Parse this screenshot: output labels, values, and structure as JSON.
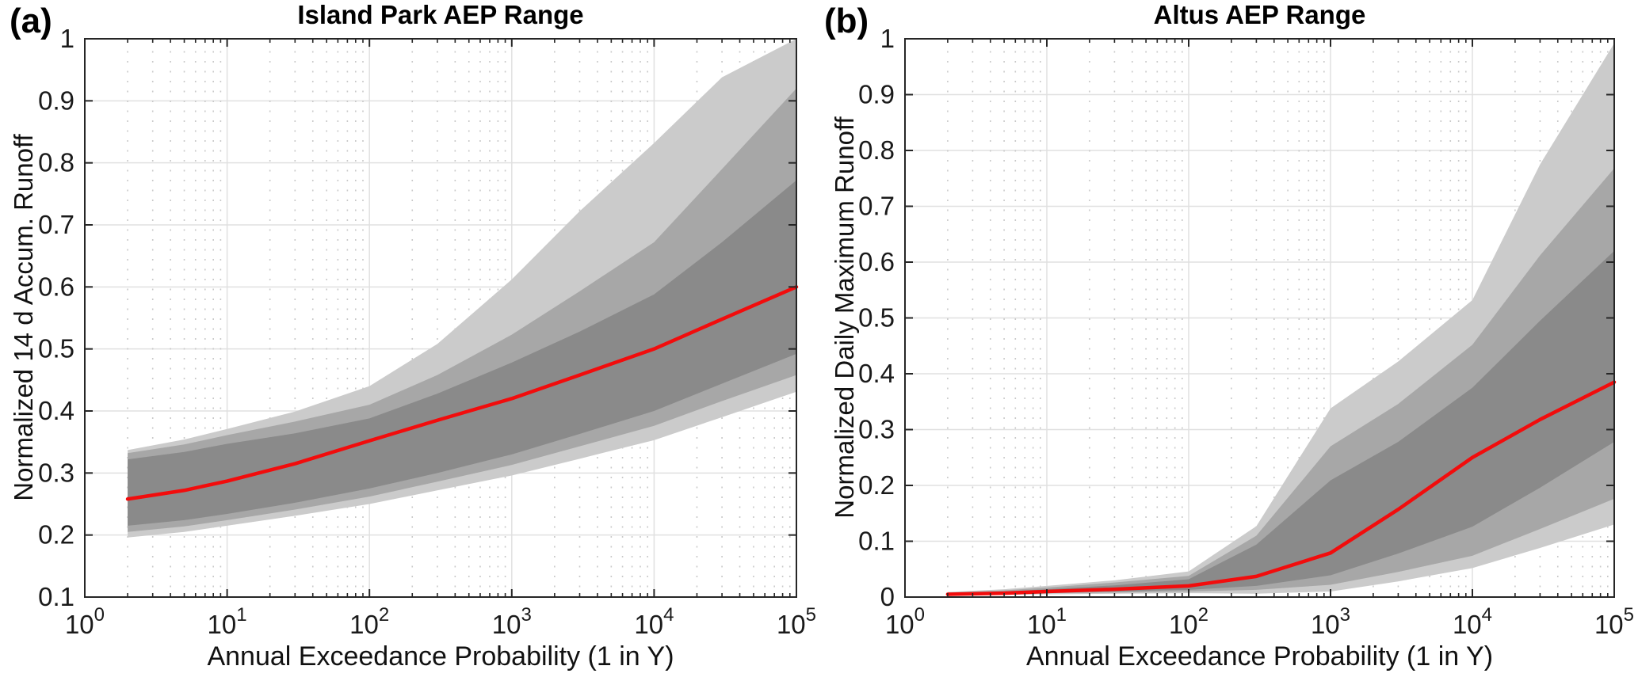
{
  "figure": {
    "panel_tags": [
      "(a)",
      "(b)"
    ],
    "colors": {
      "median": "#f20c0c",
      "band_inner": "#8a8a8a",
      "band_middle": "#a7a7a7",
      "band_outer": "#cbcbcb",
      "grid_major": "#e0e0e0",
      "grid_minor_dots": "#c9c9c9",
      "axis": "#262626",
      "tick_text": "#1a1a1a"
    }
  },
  "chart_data": [
    {
      "type": "area",
      "panel": "a",
      "title": "Island Park AEP Range",
      "xlabel": "Annual Exceedance Probability (1 in Y)",
      "ylabel": "Normalized 14 d Accum. Runoff",
      "x_scale": "log10",
      "xlim": [
        1,
        100000
      ],
      "ylim": [
        0.1,
        1
      ],
      "x_tick_exponents": [
        0,
        1,
        2,
        3,
        4,
        5
      ],
      "y_tick_labels": [
        "0.1",
        "0.2",
        "0.3",
        "0.4",
        "0.5",
        "0.6",
        "0.7",
        "0.8",
        "0.9",
        "1"
      ],
      "grid": "on",
      "legend": "none",
      "x": [
        2,
        5,
        10,
        30,
        100,
        300,
        1000,
        3000,
        10000,
        30000,
        100000
      ],
      "median": [
        0.258,
        0.272,
        0.287,
        0.315,
        0.352,
        0.385,
        0.42,
        0.458,
        0.5,
        0.548,
        0.6
      ],
      "bands": [
        {
          "name": "outer",
          "upper": [
            0.337,
            0.354,
            0.371,
            0.399,
            0.44,
            0.508,
            0.612,
            0.722,
            0.832,
            0.938,
            1.0
          ],
          "lower": [
            0.196,
            0.205,
            0.215,
            0.231,
            0.25,
            0.272,
            0.296,
            0.323,
            0.353,
            0.39,
            0.431
          ]
        },
        {
          "name": "middle",
          "upper": [
            0.332,
            0.346,
            0.361,
            0.383,
            0.41,
            0.458,
            0.523,
            0.593,
            0.672,
            0.79,
            0.92
          ],
          "lower": [
            0.205,
            0.214,
            0.224,
            0.241,
            0.262,
            0.286,
            0.313,
            0.343,
            0.376,
            0.416,
            0.458
          ]
        },
        {
          "name": "inner",
          "upper": [
            0.322,
            0.334,
            0.347,
            0.364,
            0.388,
            0.428,
            0.478,
            0.528,
            0.588,
            0.672,
            0.772
          ],
          "lower": [
            0.215,
            0.224,
            0.234,
            0.252,
            0.275,
            0.3,
            0.33,
            0.363,
            0.4,
            0.444,
            0.492
          ]
        }
      ]
    },
    {
      "type": "area",
      "panel": "b",
      "title": "Altus AEP Range",
      "xlabel": "Annual Exceedance Probability (1 in Y)",
      "ylabel": "Normalized Daily Maximum Runoff",
      "x_scale": "log10",
      "xlim": [
        1,
        100000
      ],
      "ylim": [
        0,
        1
      ],
      "x_tick_exponents": [
        0,
        1,
        2,
        3,
        4,
        5
      ],
      "y_tick_labels": [
        "0",
        "0.1",
        "0.2",
        "0.3",
        "0.4",
        "0.5",
        "0.6",
        "0.7",
        "0.8",
        "0.9",
        "1"
      ],
      "grid": "on",
      "legend": "none",
      "x": [
        2,
        5,
        10,
        30,
        100,
        300,
        1000,
        3000,
        10000,
        30000,
        100000
      ],
      "median": [
        0.005,
        0.007,
        0.01,
        0.014,
        0.02,
        0.037,
        0.079,
        0.157,
        0.25,
        0.318,
        0.385
      ],
      "bands": [
        {
          "name": "outer",
          "upper": [
            0.009,
            0.014,
            0.02,
            0.03,
            0.046,
            0.127,
            0.338,
            0.422,
            0.532,
            0.775,
            0.992
          ],
          "lower": [
            0.003,
            0.004,
            0.005,
            0.006,
            0.007,
            0.006,
            0.01,
            0.028,
            0.052,
            0.088,
            0.13
          ]
        },
        {
          "name": "middle",
          "upper": [
            0.008,
            0.012,
            0.017,
            0.026,
            0.038,
            0.11,
            0.27,
            0.346,
            0.452,
            0.612,
            0.768
          ],
          "lower": [
            0.003,
            0.005,
            0.007,
            0.008,
            0.01,
            0.013,
            0.022,
            0.045,
            0.074,
            0.122,
            0.176
          ]
        },
        {
          "name": "inner",
          "upper": [
            0.007,
            0.01,
            0.014,
            0.021,
            0.032,
            0.094,
            0.209,
            0.278,
            0.375,
            0.495,
            0.62
          ],
          "lower": [
            0.004,
            0.006,
            0.008,
            0.01,
            0.013,
            0.02,
            0.039,
            0.078,
            0.126,
            0.196,
            0.278
          ]
        }
      ]
    }
  ]
}
